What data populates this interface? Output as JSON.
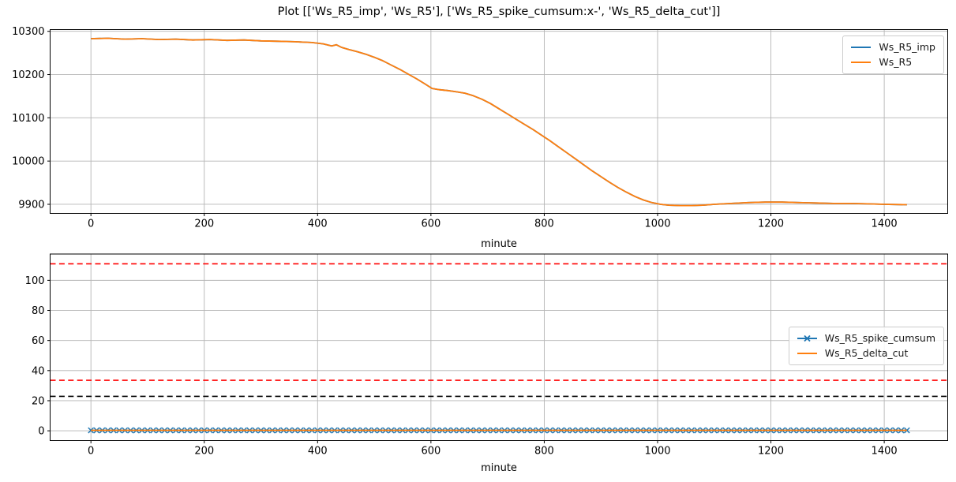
{
  "figure": {
    "title": "Plot [['Ws_R5_imp', 'Ws_R5'], ['Ws_R5_spike_cumsum:x-', 'Ws_R5_delta_cut']]"
  },
  "colors": {
    "blue": "#1f77b4",
    "orange": "#ff7f0e",
    "red": "#ff0000",
    "black": "#000000",
    "grid": "#b5b5b5",
    "spine": "#000000"
  },
  "chart_data": [
    {
      "type": "line",
      "title": "",
      "xlabel": "minute",
      "ylabel": "",
      "xlim": [
        -72,
        1512
      ],
      "ylim": [
        9879,
        10304
      ],
      "xticks": [
        0,
        200,
        400,
        600,
        800,
        1000,
        1200,
        1400
      ],
      "yticks": [
        9900,
        10000,
        10100,
        10200,
        10300
      ],
      "grid": true,
      "legend": {
        "position": "upper right",
        "entries": [
          {
            "label": "Ws_R5_imp",
            "color": "#1f77b4",
            "marker": null
          },
          {
            "label": "Ws_R5",
            "color": "#ff7f0e",
            "marker": null
          }
        ]
      },
      "series": [
        {
          "name": "Ws_R5_imp",
          "color": "#1f77b4",
          "marker": null,
          "x": [
            0,
            30,
            60,
            90,
            120,
            150,
            180,
            210,
            240,
            270,
            300,
            330,
            360,
            390,
            410,
            425,
            433,
            442,
            455,
            470,
            485,
            500,
            515,
            530,
            545,
            560,
            575,
            590,
            602,
            615,
            630,
            645,
            660,
            675,
            690,
            705,
            720,
            735,
            750,
            765,
            780,
            795,
            810,
            825,
            840,
            855,
            870,
            885,
            900,
            915,
            930,
            945,
            960,
            975,
            990,
            1005,
            1020,
            1040,
            1060,
            1080,
            1100,
            1130,
            1160,
            1190,
            1220,
            1250,
            1280,
            1310,
            1340,
            1370,
            1400,
            1440
          ],
          "y": [
            10283,
            10284,
            10282,
            10283,
            10281,
            10282,
            10280,
            10281,
            10279,
            10280,
            10278,
            10277,
            10276,
            10274,
            10271,
            10266,
            10269,
            10263,
            10258,
            10253,
            10247,
            10240,
            10232,
            10222,
            10212,
            10201,
            10190,
            10178,
            10168,
            10165,
            10163,
            10160,
            10157,
            10151,
            10143,
            10133,
            10121,
            10109,
            10097,
            10085,
            10073,
            10060,
            10047,
            10033,
            10019,
            10005,
            9991,
            9977,
            9964,
            9951,
            9939,
            9928,
            9918,
            9910,
            9904,
            9900,
            9898,
            9897,
            9897,
            9898,
            9900,
            9902,
            9904,
            9905,
            9905,
            9904,
            9903,
            9902,
            9902,
            9901,
            9900,
            9899
          ]
        },
        {
          "name": "Ws_R5",
          "color": "#ff7f0e",
          "marker": null,
          "x": [
            0,
            30,
            60,
            90,
            120,
            150,
            180,
            210,
            240,
            270,
            300,
            330,
            360,
            390,
            410,
            425,
            433,
            442,
            455,
            470,
            485,
            500,
            515,
            530,
            545,
            560,
            575,
            590,
            602,
            615,
            630,
            645,
            660,
            675,
            690,
            705,
            720,
            735,
            750,
            765,
            780,
            795,
            810,
            825,
            840,
            855,
            870,
            885,
            900,
            915,
            930,
            945,
            960,
            975,
            990,
            1005,
            1020,
            1040,
            1060,
            1080,
            1100,
            1130,
            1160,
            1190,
            1220,
            1250,
            1280,
            1310,
            1340,
            1370,
            1400,
            1440
          ],
          "y": [
            10283,
            10284,
            10282,
            10283,
            10281,
            10282,
            10280,
            10281,
            10279,
            10280,
            10278,
            10277,
            10276,
            10274,
            10271,
            10266,
            10269,
            10263,
            10258,
            10253,
            10247,
            10240,
            10232,
            10222,
            10212,
            10201,
            10190,
            10178,
            10168,
            10165,
            10163,
            10160,
            10157,
            10151,
            10143,
            10133,
            10121,
            10109,
            10097,
            10085,
            10073,
            10060,
            10047,
            10033,
            10019,
            10005,
            9991,
            9977,
            9964,
            9951,
            9939,
            9928,
            9918,
            9910,
            9904,
            9900,
            9898,
            9897,
            9897,
            9898,
            9900,
            9902,
            9904,
            9905,
            9905,
            9904,
            9903,
            9902,
            9902,
            9901,
            9900,
            9899
          ]
        }
      ],
      "hlines": []
    },
    {
      "type": "line",
      "title": "",
      "xlabel": "minute",
      "ylabel": "",
      "xlim": [
        -72,
        1512
      ],
      "ylim": [
        -6.5,
        117.5
      ],
      "xticks": [
        0,
        200,
        400,
        600,
        800,
        1000,
        1200,
        1400
      ],
      "yticks": [
        0,
        20,
        40,
        60,
        80,
        100
      ],
      "grid": true,
      "legend": {
        "position": "center right",
        "entries": [
          {
            "label": "Ws_R5_spike_cumsum",
            "color": "#1f77b4",
            "marker": "x"
          },
          {
            "label": "Ws_R5_delta_cut",
            "color": "#ff7f0e",
            "marker": null
          }
        ]
      },
      "series": [
        {
          "name": "Ws_R5_spike_cumsum",
          "color": "#1f77b4",
          "marker": "x",
          "marker_every_minutes": 10,
          "x": [
            0,
            1440
          ],
          "y": [
            0.3,
            0.3
          ]
        },
        {
          "name": "Ws_R5_delta_cut",
          "color": "#ff7f0e",
          "marker": null,
          "x": [
            0,
            1440
          ],
          "y": [
            0.3,
            0.3
          ]
        }
      ],
      "hlines": [
        {
          "y": 111,
          "color": "#ff0000",
          "style": "dashed"
        },
        {
          "y": 33.6,
          "color": "#ff0000",
          "style": "dashed"
        },
        {
          "y": 22.9,
          "color": "#000000",
          "style": "dashed"
        }
      ]
    }
  ]
}
